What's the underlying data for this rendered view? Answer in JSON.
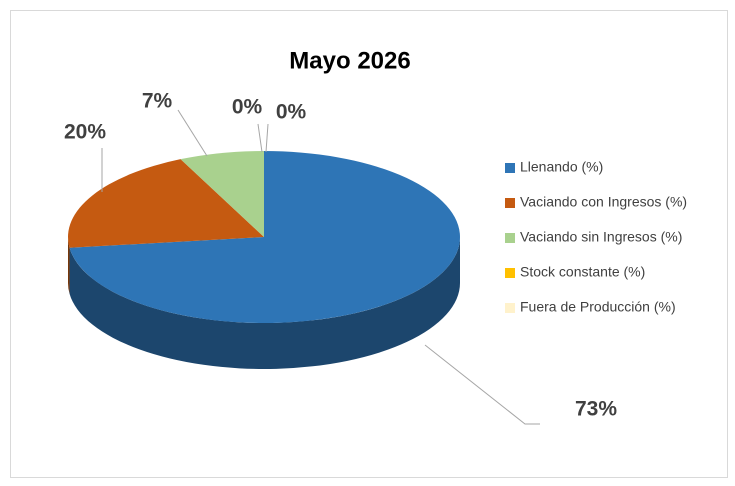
{
  "chart_data": {
    "type": "pie",
    "title": "Mayo 2026",
    "categories": [
      "Llenando (%)",
      "Vaciando con Ingresos (%)",
      "Vaciando sin Ingresos (%)",
      "Stock constante (%)",
      "Fuera de Producción (%)"
    ],
    "values": [
      73,
      20,
      7,
      0,
      0
    ],
    "value_labels": [
      "73%",
      "20%",
      "7%",
      "0%",
      "0%"
    ],
    "colors": [
      "#2e75b6",
      "#c55a11",
      "#a9d18e",
      "#ffc000",
      "#fff2cc"
    ],
    "legend": "right"
  }
}
